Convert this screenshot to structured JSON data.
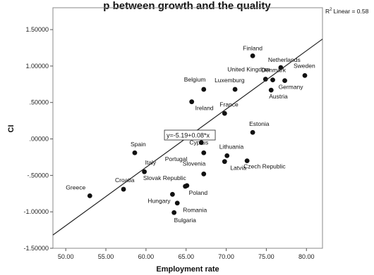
{
  "chart_data": {
    "type": "scatter",
    "title": "p between growth and the quality",
    "xlabel": "Employment rate",
    "ylabel": "CI",
    "xlim": [
      48.4,
      82.0
    ],
    "ylim": [
      -1.5,
      1.8
    ],
    "xticks": [
      "50.00",
      "55.00",
      "60.00",
      "65.00",
      "70.00",
      "75.00",
      "80.00"
    ],
    "xtick_values": [
      50,
      55,
      60,
      65,
      70,
      75,
      80
    ],
    "yticks": [
      "-1.50000",
      "-1.00000",
      "-.50000",
      ".00000",
      ".50000",
      "1.00000",
      "1.50000"
    ],
    "ytick_values": [
      -1.5,
      -1.0,
      -0.5,
      0.0,
      0.5,
      1.0,
      1.5
    ],
    "fit_line": {
      "intercept": -5.19,
      "slope": 0.08,
      "equation": "y=-5.19+0.08*x",
      "r2_text": "Linear = 0.58"
    },
    "points": [
      {
        "name": "Finland",
        "x": 73.3,
        "y": 1.14
      },
      {
        "name": "Netherlands",
        "x": 76.8,
        "y": 0.98
      },
      {
        "name": "Sweden",
        "x": 79.8,
        "y": 0.87
      },
      {
        "name": "United Kingdom",
        "x": 74.9,
        "y": 0.82
      },
      {
        "name": "Denmark",
        "x": 75.8,
        "y": 0.81
      },
      {
        "name": "Germany",
        "x": 77.3,
        "y": 0.8
      },
      {
        "name": "Luxemburg",
        "x": 71.1,
        "y": 0.68
      },
      {
        "name": "Austria",
        "x": 75.6,
        "y": 0.67
      },
      {
        "name": "Belgium",
        "x": 67.2,
        "y": 0.68
      },
      {
        "name": "Ireland",
        "x": 65.7,
        "y": 0.51
      },
      {
        "name": "France",
        "x": 69.8,
        "y": 0.35
      },
      {
        "name": "Estonia",
        "x": 73.3,
        "y": 0.09
      },
      {
        "name": "Cyprus",
        "x": 66.9,
        "y": -0.05
      },
      {
        "name": "Portugal",
        "x": 67.2,
        "y": -0.19
      },
      {
        "name": "Spain",
        "x": 58.6,
        "y": -0.19
      },
      {
        "name": "Lithuania",
        "x": 70.1,
        "y": -0.23
      },
      {
        "name": "Latvia",
        "x": 69.8,
        "y": -0.31
      },
      {
        "name": "Czech Republic",
        "x": 72.6,
        "y": -0.3
      },
      {
        "name": "Slovenia",
        "x": 67.2,
        "y": -0.48
      },
      {
        "name": "Italy",
        "x": 59.8,
        "y": -0.45
      },
      {
        "name": "Slovak Republic",
        "x": 65.1,
        "y": -0.64
      },
      {
        "name": "Croatia",
        "x": 57.2,
        "y": -0.69
      },
      {
        "name": "Poland",
        "x": 64.9,
        "y": -0.65
      },
      {
        "name": "Greece",
        "x": 53.0,
        "y": -0.78
      },
      {
        "name": "Hungary",
        "x": 63.3,
        "y": -0.76
      },
      {
        "name": "Romania",
        "x": 63.9,
        "y": -0.88
      },
      {
        "name": "Bulgaria",
        "x": 63.5,
        "y": -1.01
      }
    ]
  }
}
